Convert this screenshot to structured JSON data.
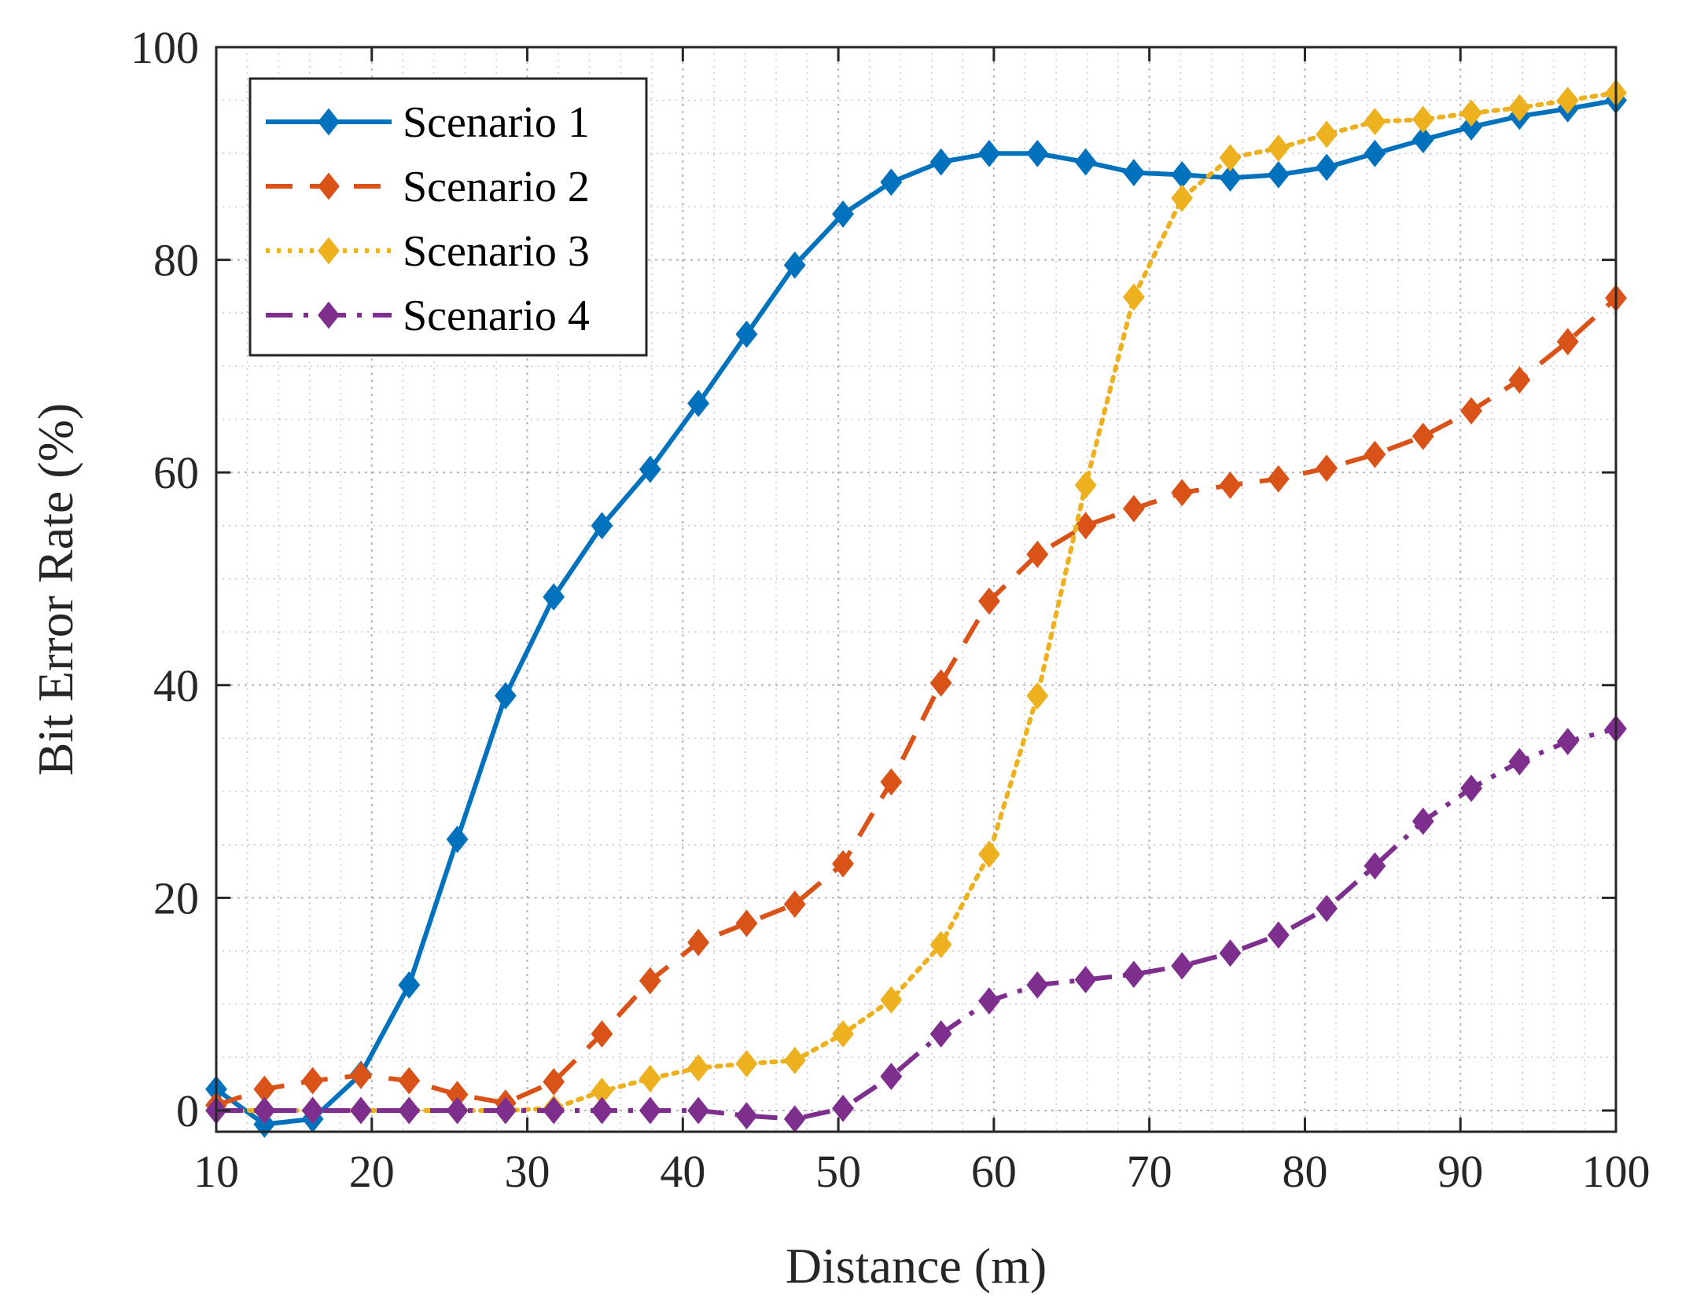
{
  "chart_data": {
    "type": "line",
    "title": "",
    "xlabel": "Distance (m)",
    "ylabel": "Bit Error Rate (%)",
    "xlim": [
      10,
      100
    ],
    "ylim": [
      -2,
      100
    ],
    "xticks": [
      "10",
      "20",
      "30",
      "40",
      "50",
      "60",
      "70",
      "80",
      "90",
      "100"
    ],
    "yticks": [
      "0",
      "20",
      "40",
      "60",
      "80",
      "100"
    ],
    "grid": true,
    "legend_position": "top-left",
    "x": [
      10,
      13.1,
      16.2,
      19.3,
      22.4,
      25.5,
      28.6,
      31.7,
      34.8,
      37.9,
      41,
      44.1,
      47.2,
      50.3,
      53.4,
      56.6,
      59.7,
      62.8,
      65.9,
      69,
      72.1,
      75.2,
      78.3,
      81.4,
      84.5,
      87.6,
      90.7,
      93.8,
      96.9,
      100
    ],
    "series": [
      {
        "name": "Scenario 1",
        "color": "#0072BD",
        "dash": "solid",
        "values": [
          2,
          -1.3,
          -0.8,
          3.4,
          11.8,
          25.5,
          39,
          48.3,
          55,
          60.3,
          66.5,
          73,
          79.5,
          84.3,
          87.3,
          89.2,
          90,
          90,
          89.2,
          88.2,
          88,
          87.7,
          88,
          88.7,
          90,
          91.3,
          92.5,
          93.5,
          94.2,
          95
        ]
      },
      {
        "name": "Scenario 2",
        "color": "#D95319",
        "dash": "dashed",
        "values": [
          0.5,
          2,
          2.8,
          3.3,
          2.8,
          1.5,
          0.7,
          2.7,
          7.2,
          12.2,
          15.8,
          17.6,
          19.4,
          23.2,
          30.9,
          40.2,
          47.9,
          52.3,
          55,
          56.6,
          58.1,
          58.8,
          59.4,
          60.4,
          61.7,
          63.4,
          65.8,
          68.7,
          72.3,
          76.4
        ]
      },
      {
        "name": "Scenario 3",
        "color": "#EDB120",
        "dash": "dotted",
        "values": [
          0,
          0,
          0,
          0,
          0,
          0,
          0,
          0.2,
          1.8,
          3,
          4,
          4.4,
          4.7,
          7.2,
          10.4,
          15.6,
          24.1,
          39,
          58.8,
          76.5,
          85.8,
          89.6,
          90.5,
          91.8,
          93,
          93.2,
          93.8,
          94.3,
          95,
          95.7
        ]
      },
      {
        "name": "Scenario 4",
        "color": "#7E2F8E",
        "dash": "dashdot",
        "values": [
          0,
          0,
          0,
          0,
          0,
          0,
          0,
          0,
          0,
          0,
          0,
          -0.5,
          -0.8,
          0.2,
          3.2,
          7.2,
          10.3,
          11.8,
          12.3,
          12.8,
          13.6,
          14.8,
          16.5,
          19,
          23,
          27.2,
          30.3,
          32.8,
          34.7,
          35.9
        ]
      }
    ]
  }
}
